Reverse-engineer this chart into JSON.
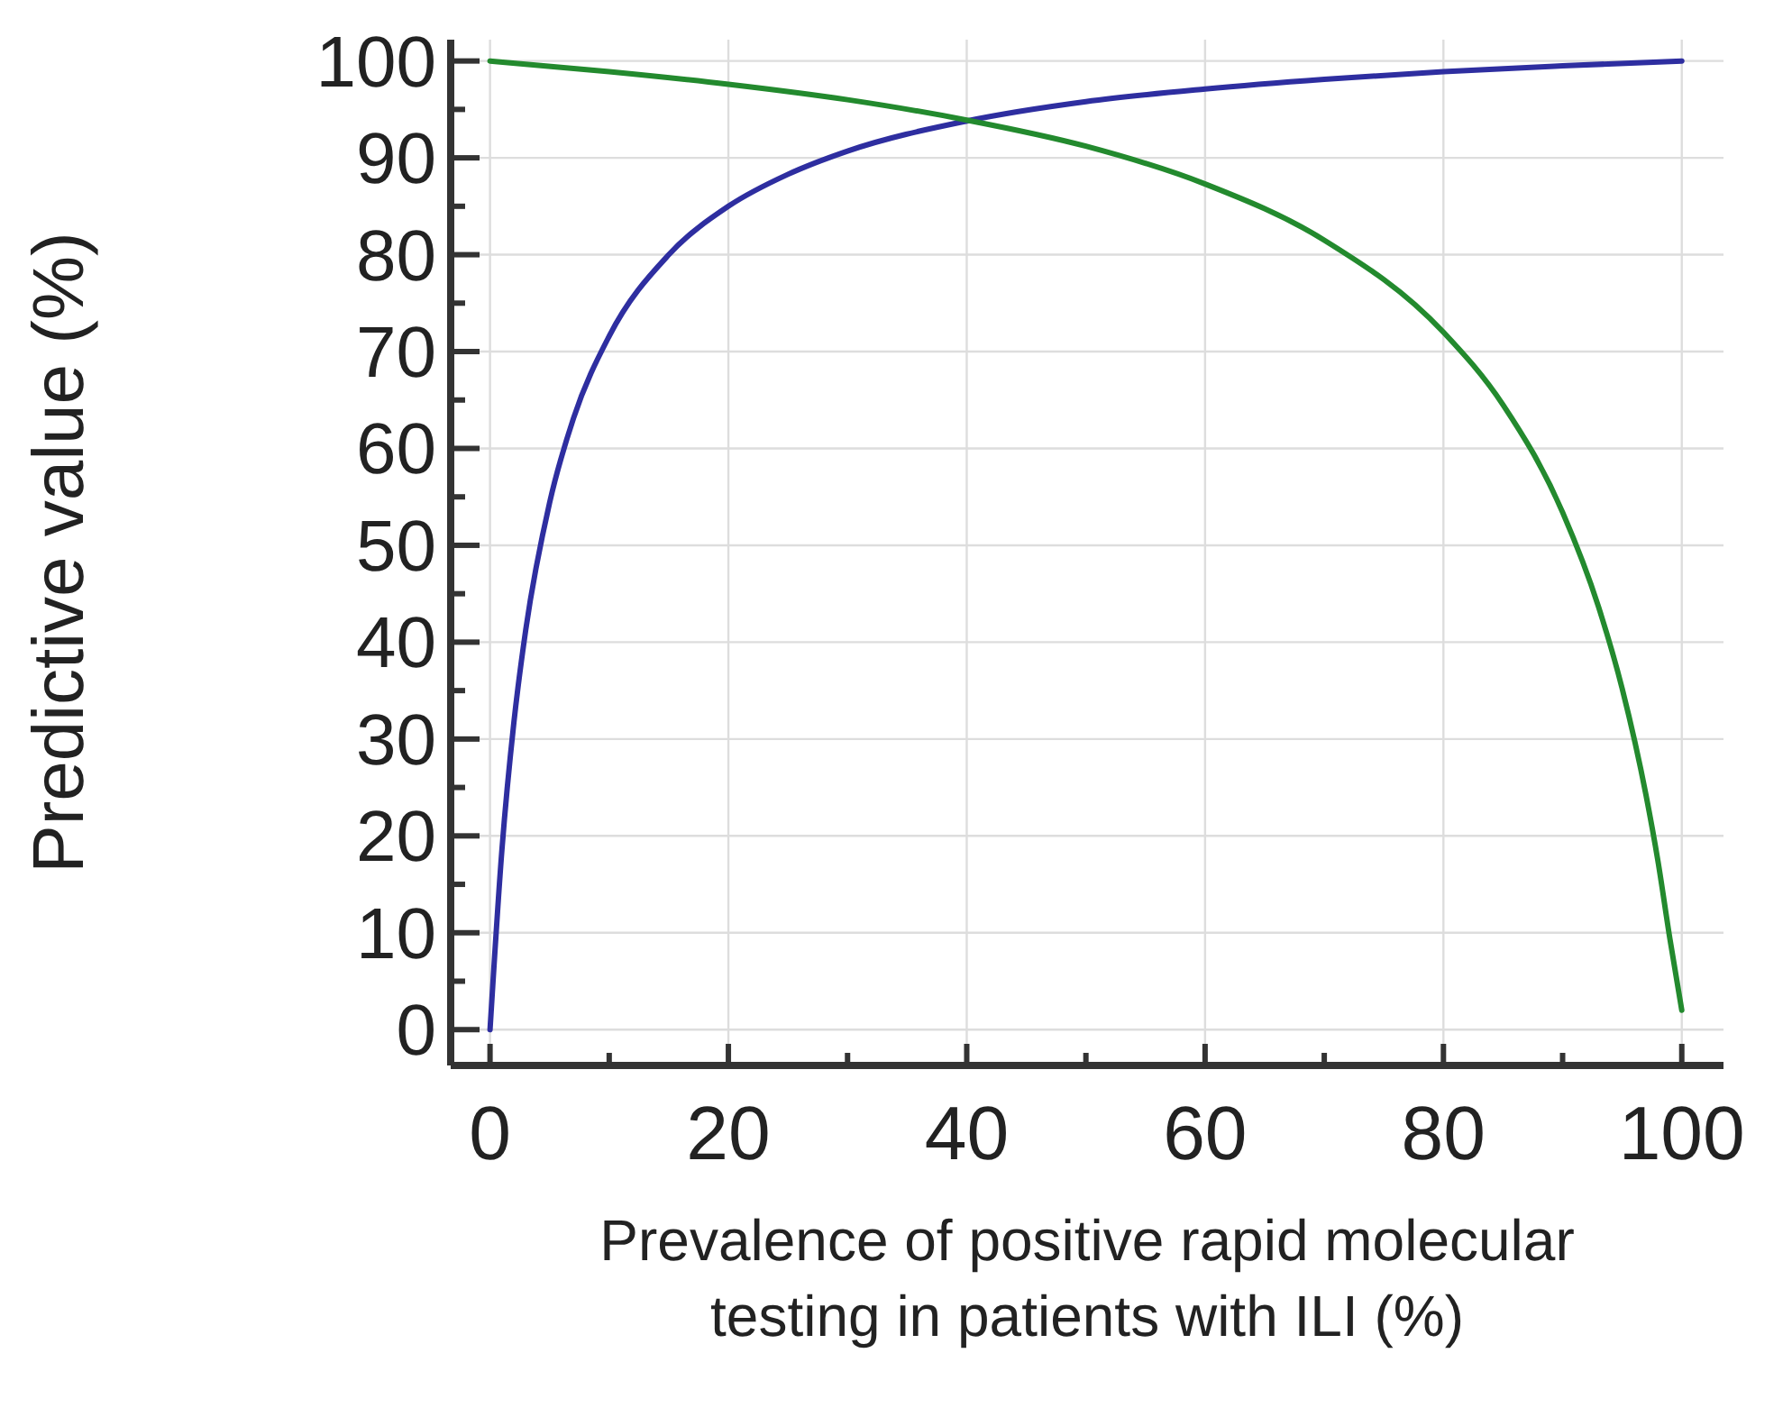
{
  "chart_data": {
    "type": "line",
    "xlabel": "Prevalence of positive rapid molecular testing in patients with ILI (%)",
    "ylabel": "Predictive value (%)",
    "xlim": [
      -3.3,
      103.5
    ],
    "ylim": [
      -3.7,
      102.2
    ],
    "xticks": [
      0,
      {
        "value": 10,
        "label": null
      },
      20,
      {
        "value": 30,
        "label": null
      },
      40,
      {
        "value": 50,
        "label": null
      },
      60,
      {
        "value": 70,
        "label": null
      },
      80,
      {
        "value": 90,
        "label": null
      },
      100
    ],
    "yticks": [
      0,
      {
        "value": 5,
        "label": null
      },
      10,
      {
        "value": 15,
        "label": null
      },
      20,
      {
        "value": 25,
        "label": null
      },
      30,
      {
        "value": 35,
        "label": null
      },
      40,
      {
        "value": 45,
        "label": null
      },
      50,
      {
        "value": 55,
        "label": null
      },
      60,
      {
        "value": 65,
        "label": null
      },
      70,
      {
        "value": 75,
        "label": null
      },
      80,
      {
        "value": 85,
        "label": null
      },
      90,
      {
        "value": 95,
        "label": null
      },
      100
    ],
    "grid": true,
    "marker": "none",
    "line_style": "solid",
    "series": [
      {
        "color": "#2e2ea0",
        "x": [
          0,
          1,
          2,
          3,
          5,
          7,
          10,
          15,
          20,
          25,
          30,
          40,
          50,
          60,
          70,
          80,
          90,
          100
        ],
        "values": [
          0,
          18.6,
          31.7,
          41.3,
          54.4,
          63.1,
          71.6,
          80,
          85,
          88.3,
          90.7,
          93.8,
          95.8,
          97.1,
          98.1,
          98.9,
          99.5,
          100
        ]
      },
      {
        "color": "#238a2e",
        "x": [
          0,
          10,
          20,
          30,
          40,
          50,
          60,
          70,
          80,
          85,
          90,
          93,
          95,
          97,
          98,
          99,
          100
        ],
        "values": [
          100,
          98.9,
          97.6,
          96,
          93.9,
          91.2,
          87.3,
          81.5,
          72,
          64.5,
          53.4,
          43.7,
          35.2,
          24.2,
          17.4,
          9.4,
          2
        ]
      }
    ]
  }
}
